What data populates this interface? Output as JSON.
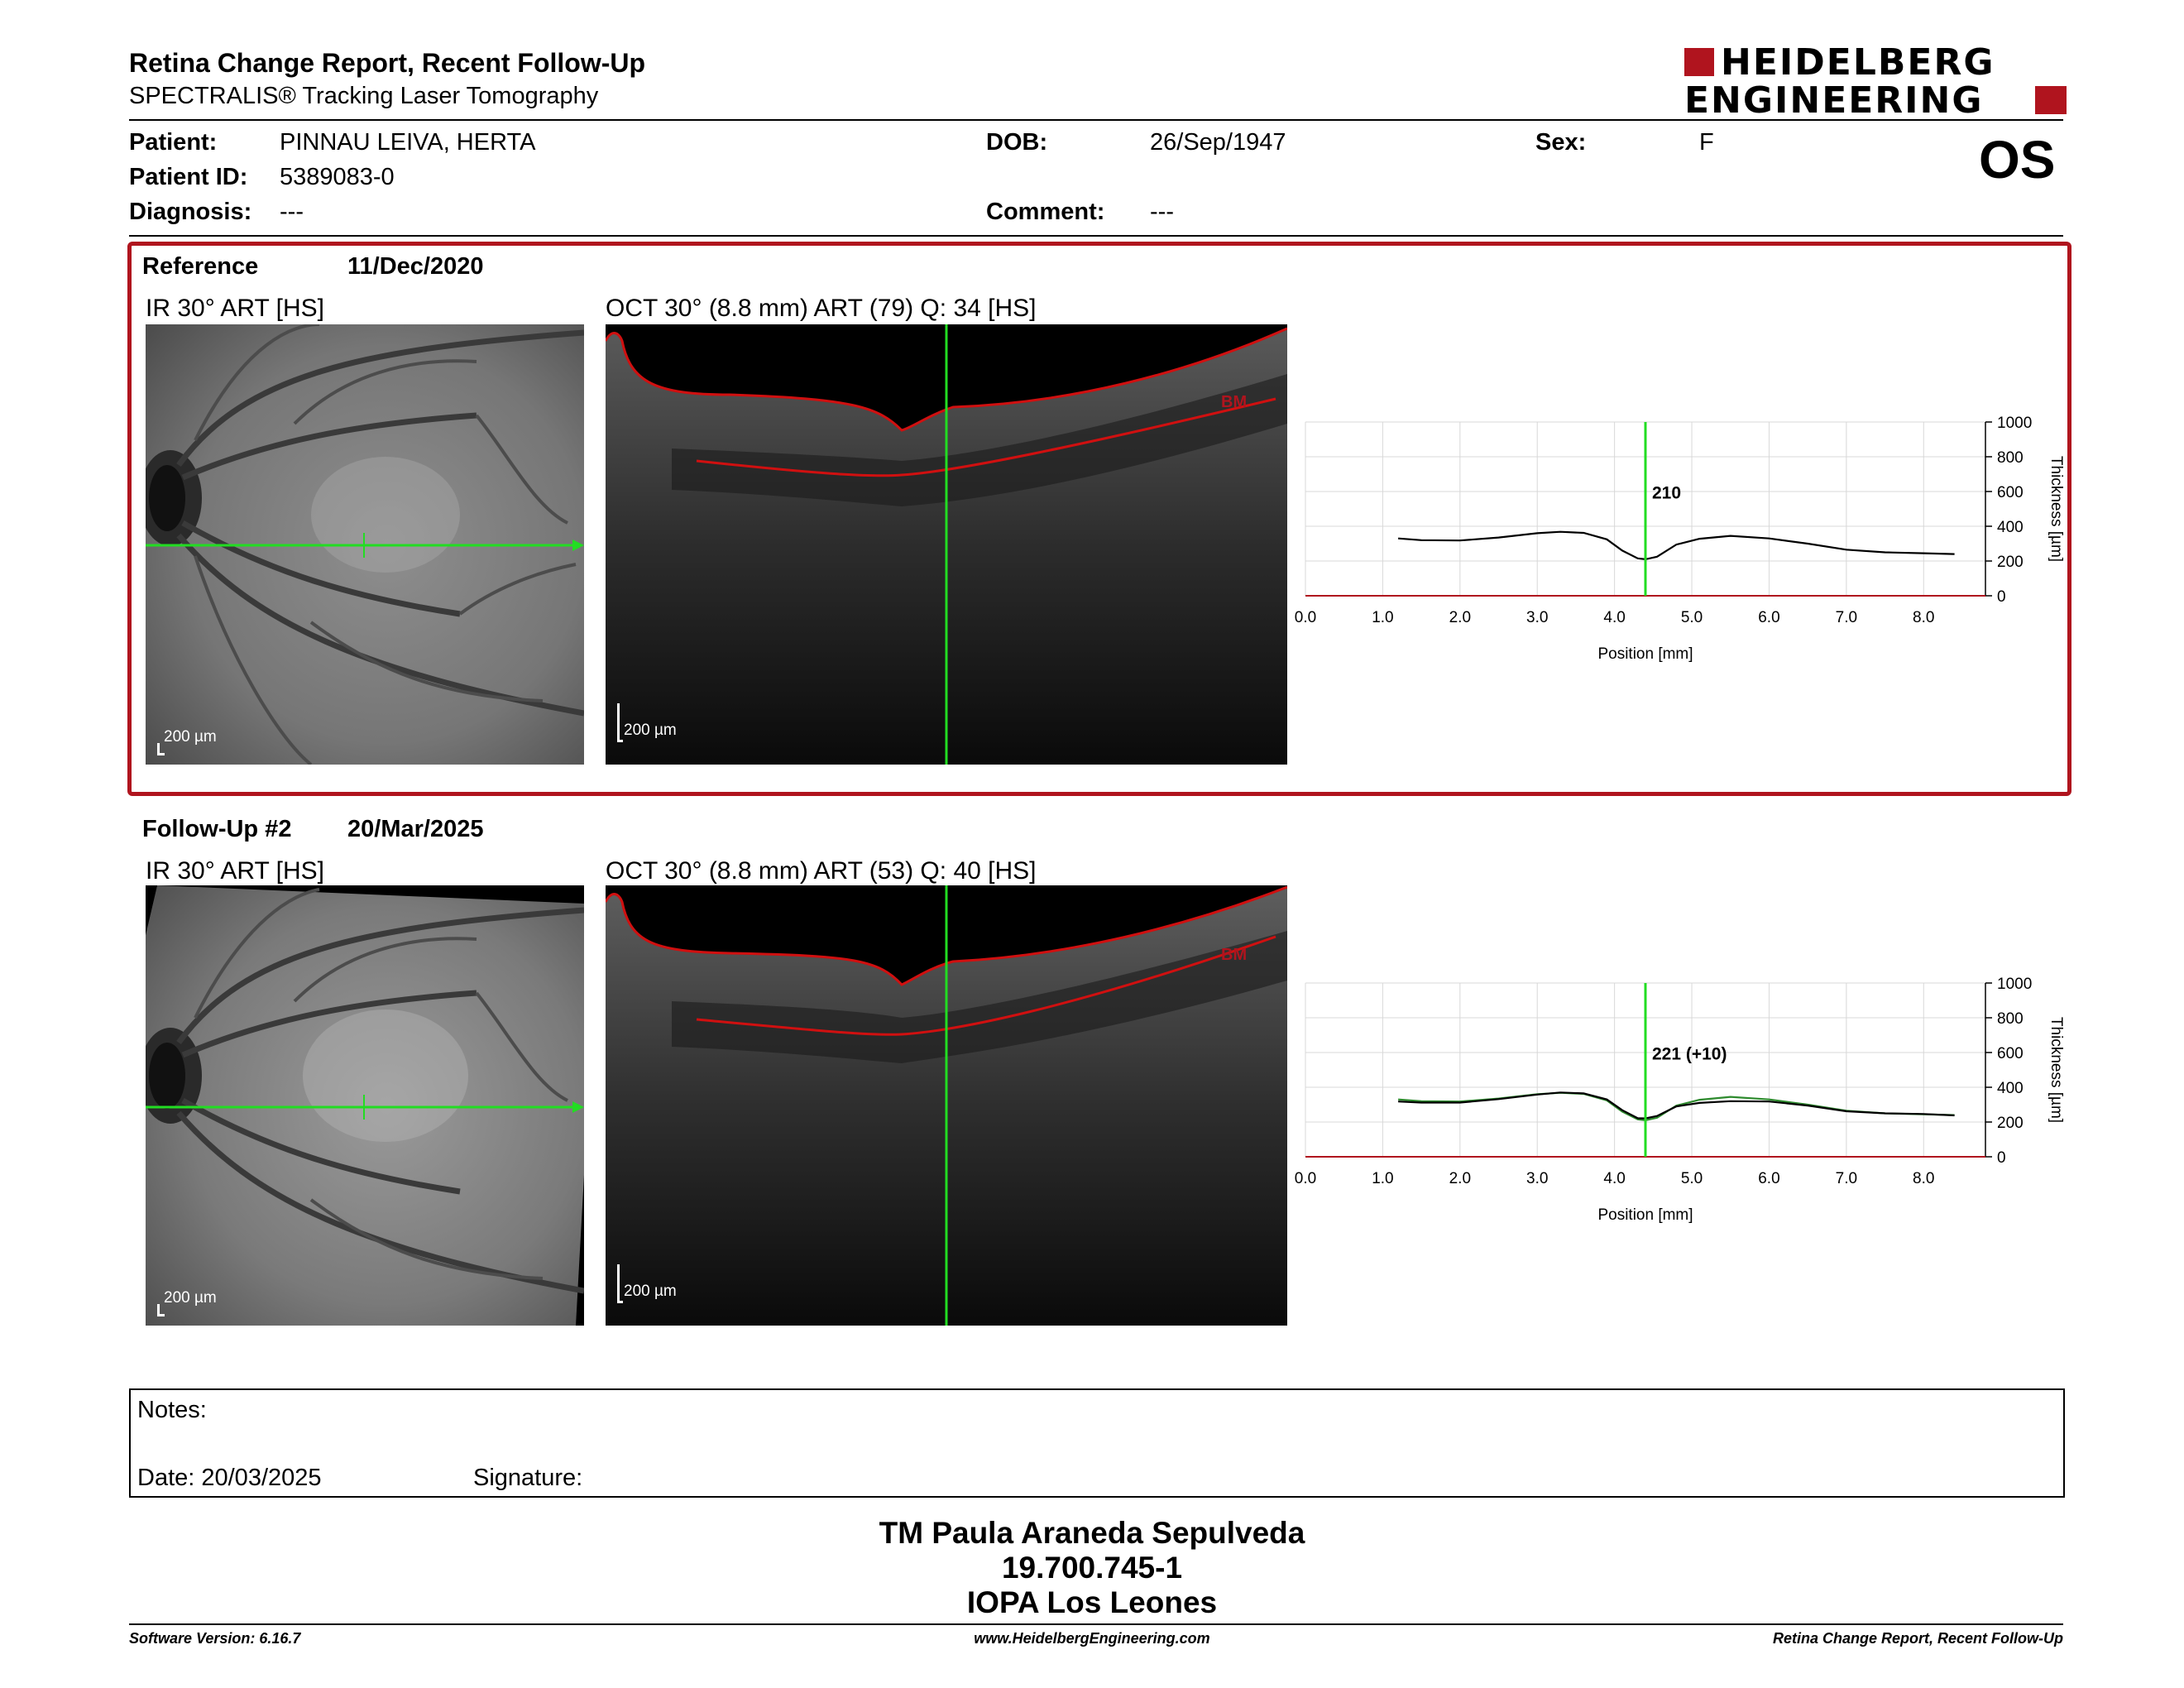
{
  "header": {
    "title": "Retina Change Report, Recent Follow-Up",
    "subtitle": "SPECTRALIS® Tracking Laser Tomography",
    "logo_line1": "HEIDELBERG",
    "logo_line2": "ENGINEERING",
    "eye": "OS"
  },
  "patient": {
    "patient_label": "Patient:",
    "patient_value": "PINNAU LEIVA, HERTA",
    "id_label": "Patient ID:",
    "id_value": "5389083-0",
    "diagnosis_label": "Diagnosis:",
    "diagnosis_value": "---",
    "dob_label": "DOB:",
    "dob_value": "26/Sep/1947",
    "comment_label": "Comment:",
    "comment_value": "---",
    "sex_label": "Sex:",
    "sex_value": "F"
  },
  "reference": {
    "label": "Reference",
    "date": "11/Dec/2020",
    "ir_label": "IR 30° ART [HS]",
    "oct_label": "OCT 30° (8.8 mm) ART (79) Q: 34 [HS]",
    "scale": "200 µm",
    "bm": "BM",
    "thickness_marker": "210"
  },
  "followup": {
    "label": "Follow-Up #2",
    "date": "20/Mar/2025",
    "ir_label": "IR 30° ART [HS]",
    "oct_label": "OCT 30° (8.8 mm) ART (53) Q: 40 [HS]",
    "scale": "200 µm",
    "bm": "BM",
    "thickness_marker": "221 (+10)"
  },
  "chart_data": [
    {
      "type": "line",
      "xlabel": "Position [mm]",
      "ylabel": "Thickness [µm]",
      "xlim": [
        0,
        8.8
      ],
      "ylim": [
        0,
        1000
      ],
      "x_ticks": [
        "0.0",
        "1.0",
        "2.0",
        "3.0",
        "4.0",
        "5.0",
        "6.0",
        "7.0",
        "8.0"
      ],
      "y_ticks": [
        "0",
        "200",
        "400",
        "600",
        "800",
        "1000"
      ],
      "marker_x": 4.4,
      "marker_label": "210",
      "series": [
        {
          "color": "#000000",
          "x": [
            1.2,
            1.5,
            2.0,
            2.5,
            3.0,
            3.3,
            3.6,
            3.9,
            4.1,
            4.3,
            4.4,
            4.55,
            4.8,
            5.1,
            5.5,
            6.0,
            6.5,
            7.0,
            7.5,
            8.0,
            8.4
          ],
          "y": [
            330,
            320,
            318,
            335,
            360,
            368,
            362,
            325,
            260,
            215,
            210,
            225,
            295,
            328,
            345,
            330,
            300,
            265,
            250,
            245,
            240
          ]
        }
      ]
    },
    {
      "type": "line",
      "xlabel": "Position [mm]",
      "ylabel": "Thickness [µm]",
      "xlim": [
        0,
        8.8
      ],
      "ylim": [
        0,
        1000
      ],
      "x_ticks": [
        "0.0",
        "1.0",
        "2.0",
        "3.0",
        "4.0",
        "5.0",
        "6.0",
        "7.0",
        "8.0"
      ],
      "y_ticks": [
        "0",
        "200",
        "400",
        "600",
        "800",
        "1000"
      ],
      "marker_x": 4.4,
      "marker_label": "221 (+10)",
      "series": [
        {
          "color": "#2e8b2e",
          "x": [
            1.2,
            1.5,
            2.0,
            2.5,
            3.0,
            3.3,
            3.6,
            3.9,
            4.1,
            4.3,
            4.4,
            4.55,
            4.8,
            5.1,
            5.5,
            6.0,
            6.5,
            7.0,
            7.5,
            8.0,
            8.4
          ],
          "y": [
            330,
            320,
            318,
            335,
            360,
            368,
            362,
            325,
            260,
            215,
            210,
            225,
            295,
            328,
            345,
            330,
            300,
            265,
            250,
            245,
            240
          ]
        },
        {
          "color": "#000000",
          "x": [
            1.2,
            1.5,
            2.0,
            2.5,
            3.0,
            3.3,
            3.6,
            3.9,
            4.1,
            4.3,
            4.4,
            4.55,
            4.8,
            5.1,
            5.5,
            6.0,
            6.5,
            7.0,
            7.5,
            8.0,
            8.4
          ],
          "y": [
            318,
            312,
            312,
            332,
            358,
            370,
            365,
            330,
            268,
            222,
            221,
            235,
            290,
            310,
            320,
            318,
            295,
            262,
            250,
            246,
            238
          ]
        }
      ]
    }
  ],
  "notes": {
    "notes_label": "Notes:",
    "date_label": "Date: 20/03/2025",
    "signature_label": "Signature:"
  },
  "signature": {
    "name": "TM Paula Araneda Sepulveda",
    "id": "19.700.745-1",
    "org": "IOPA Los Leones"
  },
  "footer": {
    "software": "Software Version: 6.16.7",
    "website": "www.HeidelbergEngineering.com",
    "report": "Retina Change Report, Recent Follow-Up"
  },
  "colors": {
    "brand_red": "#b0141e",
    "scan_line": "#22dd22",
    "boundary": "#d01010"
  }
}
